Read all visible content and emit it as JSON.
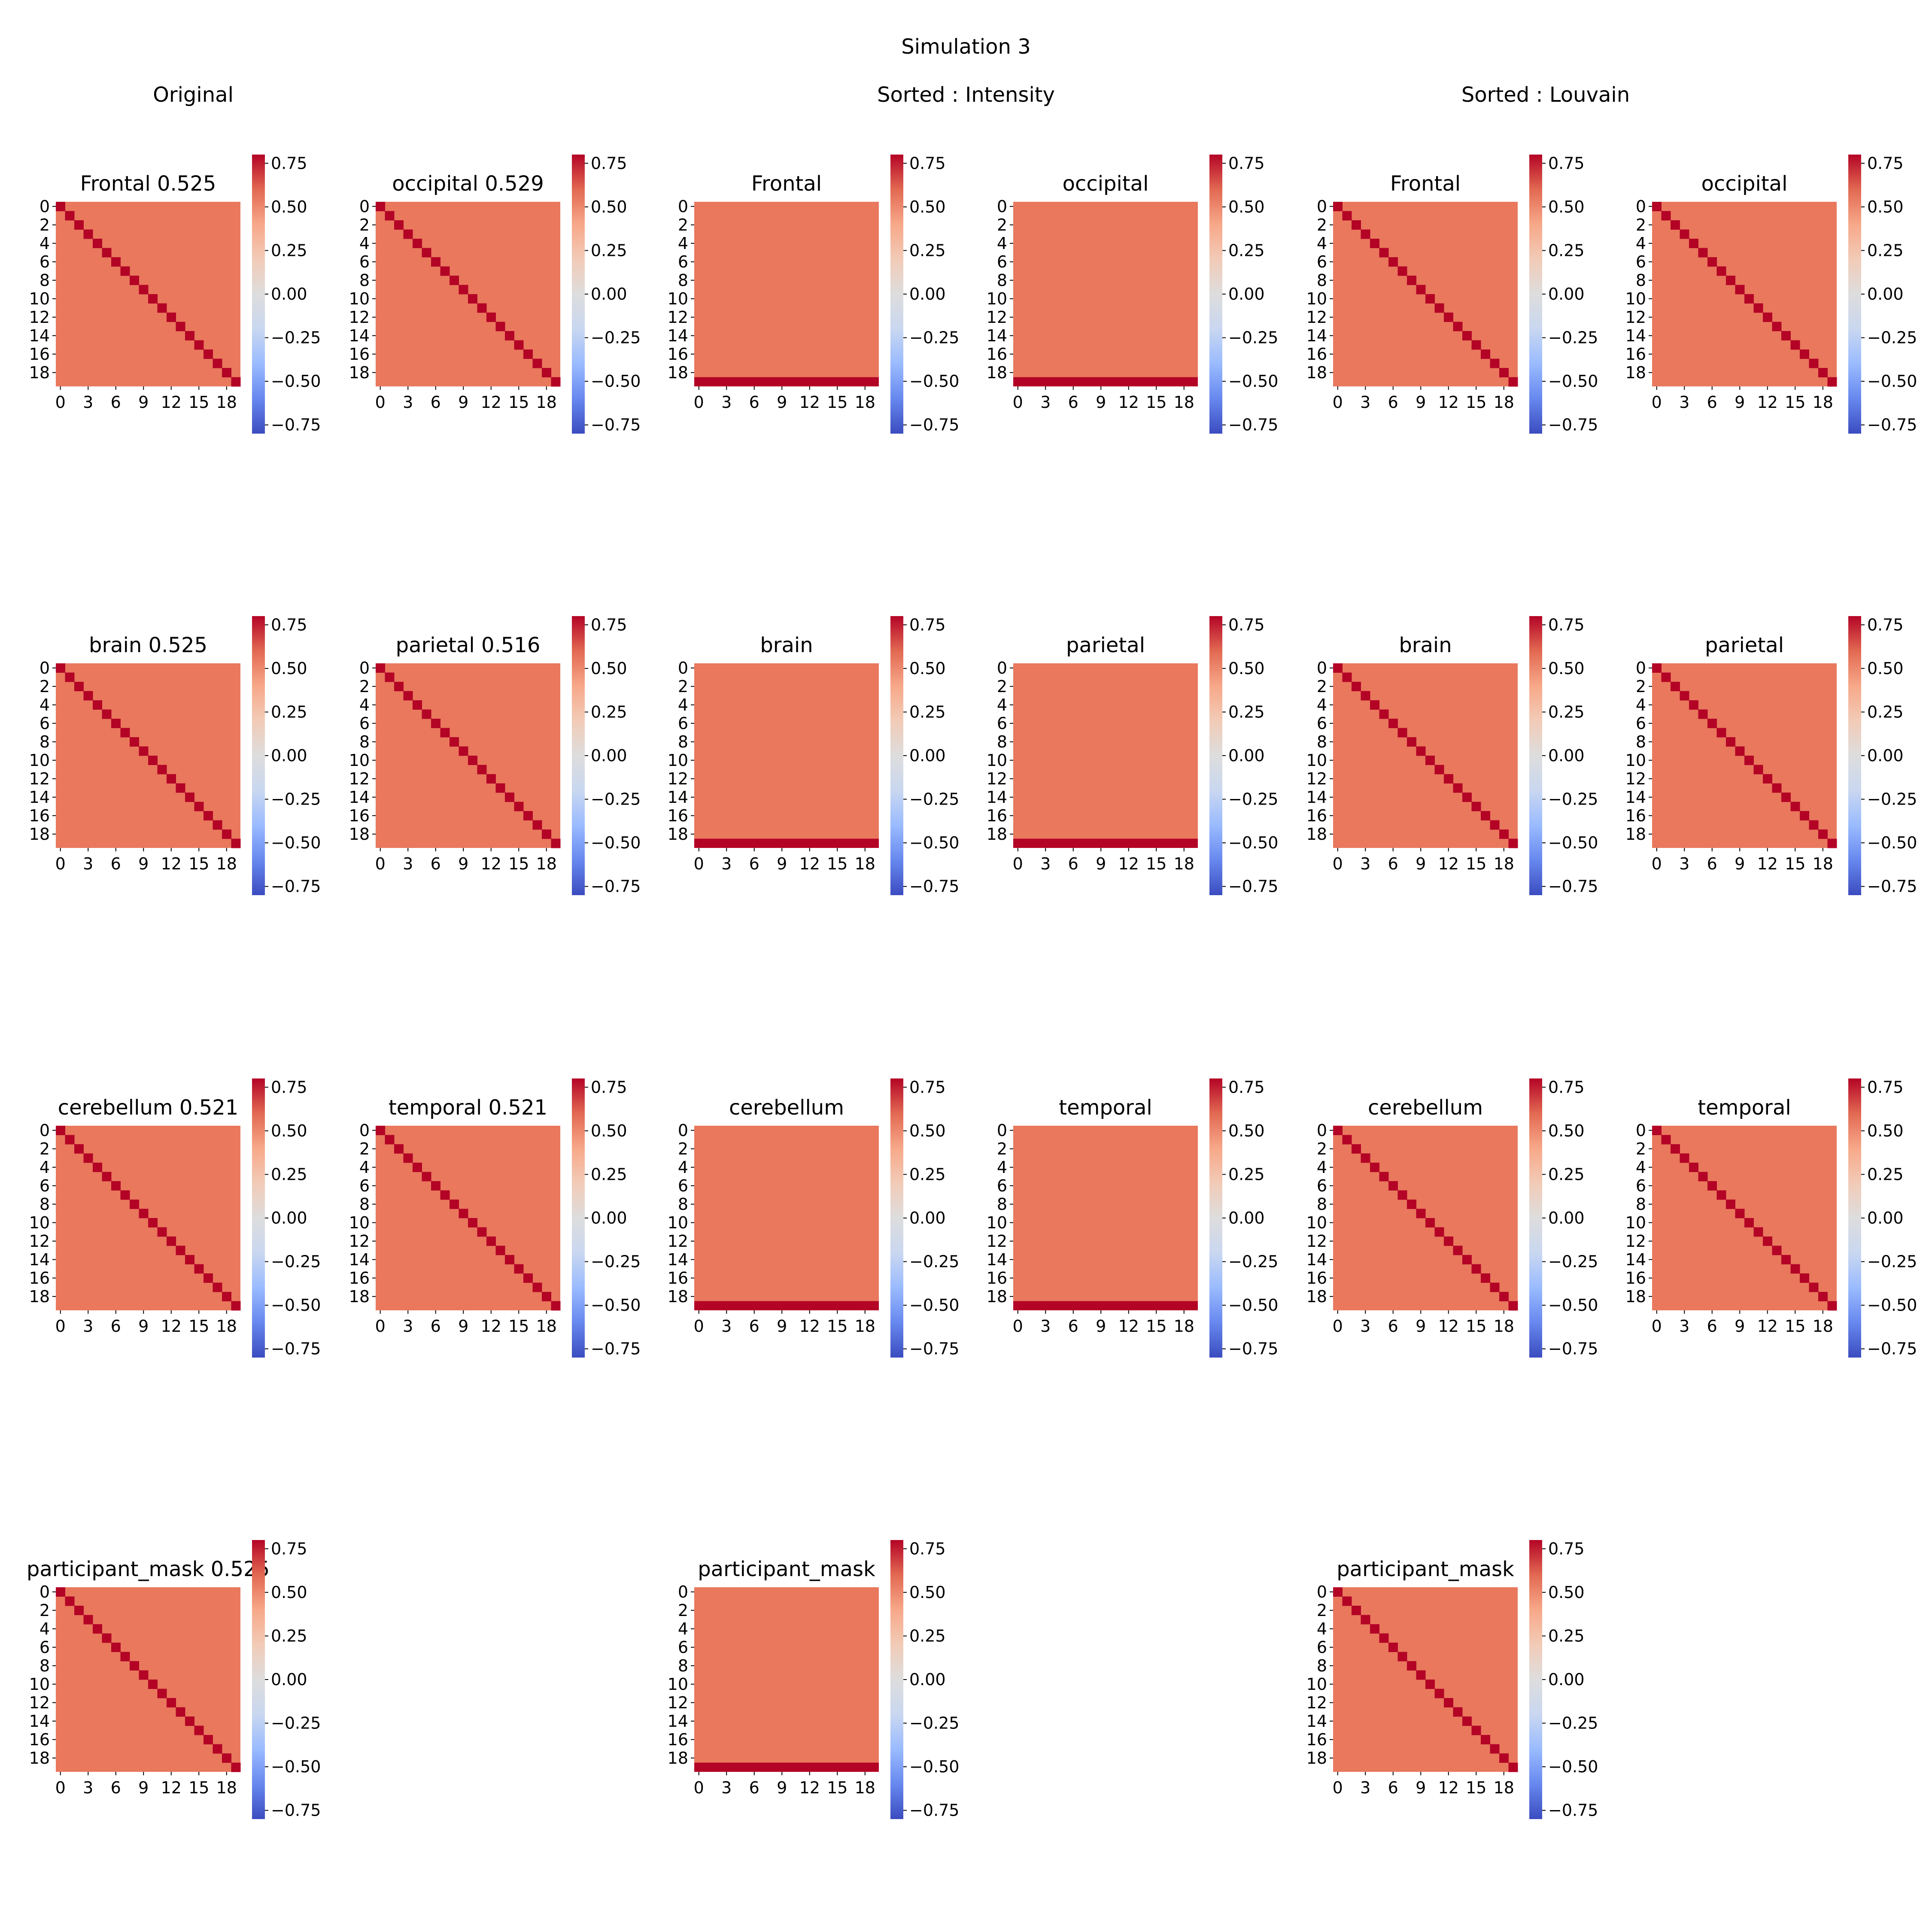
{
  "figure": {
    "suptitle": "Simulation  3",
    "column_groups": [
      "Original",
      "Sorted : Intensity",
      "Sorted : Louvain"
    ]
  },
  "colors": {
    "base_cell": "#e9785d",
    "diagonal_cell": "#b40426",
    "colormap": [
      "#3b4cc0",
      "#6788ee",
      "#9abbff",
      "#c9d7f0",
      "#dddddd",
      "#f2cbb7",
      "#f7a889",
      "#e26952",
      "#b40426"
    ]
  },
  "chart_data": [
    {
      "type": "heatmap",
      "title": "Frontal 0.525",
      "pattern": "diagonal",
      "matrix_size": 20,
      "off_diagonal_value": 0.525,
      "diagonal_value": 0.8,
      "x_ticks": [
        "0",
        "3",
        "6",
        "9",
        "12",
        "15",
        "18"
      ],
      "y_ticks": [
        "0",
        "2",
        "4",
        "6",
        "8",
        "10",
        "12",
        "14",
        "16",
        "18"
      ],
      "colorbar_ticks": [
        "0.75",
        "0.50",
        "0.25",
        "0.00",
        "−0.25",
        "−0.50",
        "−0.75"
      ],
      "vmin": -0.8,
      "vmax": 0.8
    },
    {
      "type": "heatmap",
      "title": "occipital 0.529",
      "pattern": "diagonal",
      "matrix_size": 20,
      "off_diagonal_value": 0.529,
      "diagonal_value": 0.8,
      "x_ticks": [
        "0",
        "3",
        "6",
        "9",
        "12",
        "15",
        "18"
      ],
      "y_ticks": [
        "0",
        "2",
        "4",
        "6",
        "8",
        "10",
        "12",
        "14",
        "16",
        "18"
      ],
      "colorbar_ticks": [
        "0.75",
        "0.50",
        "0.25",
        "0.00",
        "−0.25",
        "−0.50",
        "−0.75"
      ],
      "vmin": -0.8,
      "vmax": 0.8
    },
    {
      "type": "heatmap",
      "title": "Frontal",
      "pattern": "bottom_row",
      "matrix_size": 20,
      "off_diagonal_value": 0.525,
      "diagonal_value": 0.8,
      "x_ticks": [
        "0",
        "3",
        "6",
        "9",
        "12",
        "15",
        "18"
      ],
      "y_ticks": [
        "0",
        "2",
        "4",
        "6",
        "8",
        "10",
        "12",
        "14",
        "16",
        "18"
      ],
      "colorbar_ticks": [
        "0.75",
        "0.50",
        "0.25",
        "0.00",
        "−0.25",
        "−0.50",
        "−0.75"
      ],
      "vmin": -0.8,
      "vmax": 0.8
    },
    {
      "type": "heatmap",
      "title": "occipital",
      "pattern": "bottom_row",
      "matrix_size": 20,
      "off_diagonal_value": 0.529,
      "diagonal_value": 0.8,
      "x_ticks": [
        "0",
        "3",
        "6",
        "9",
        "12",
        "15",
        "18"
      ],
      "y_ticks": [
        "0",
        "2",
        "4",
        "6",
        "8",
        "10",
        "12",
        "14",
        "16",
        "18"
      ],
      "colorbar_ticks": [
        "0.75",
        "0.50",
        "0.25",
        "0.00",
        "−0.25",
        "−0.50",
        "−0.75"
      ],
      "vmin": -0.8,
      "vmax": 0.8
    },
    {
      "type": "heatmap",
      "title": "Frontal",
      "pattern": "diagonal",
      "matrix_size": 20,
      "off_diagonal_value": 0.525,
      "diagonal_value": 0.8,
      "x_ticks": [
        "0",
        "3",
        "6",
        "9",
        "12",
        "15",
        "18"
      ],
      "y_ticks": [
        "0",
        "2",
        "4",
        "6",
        "8",
        "10",
        "12",
        "14",
        "16",
        "18"
      ],
      "colorbar_ticks": [
        "0.75",
        "0.50",
        "0.25",
        "0.00",
        "−0.25",
        "−0.50",
        "−0.75"
      ],
      "vmin": -0.8,
      "vmax": 0.8
    },
    {
      "type": "heatmap",
      "title": "occipital",
      "pattern": "diagonal",
      "matrix_size": 20,
      "off_diagonal_value": 0.529,
      "diagonal_value": 0.8,
      "x_ticks": [
        "0",
        "3",
        "6",
        "9",
        "12",
        "15",
        "18"
      ],
      "y_ticks": [
        "0",
        "2",
        "4",
        "6",
        "8",
        "10",
        "12",
        "14",
        "16",
        "18"
      ],
      "colorbar_ticks": [
        "0.75",
        "0.50",
        "0.25",
        "0.00",
        "−0.25",
        "−0.50",
        "−0.75"
      ],
      "vmin": -0.8,
      "vmax": 0.8
    },
    {
      "type": "heatmap",
      "title": "brain 0.525",
      "pattern": "diagonal",
      "matrix_size": 20,
      "off_diagonal_value": 0.525,
      "diagonal_value": 0.8,
      "x_ticks": [
        "0",
        "3",
        "6",
        "9",
        "12",
        "15",
        "18"
      ],
      "y_ticks": [
        "0",
        "2",
        "4",
        "6",
        "8",
        "10",
        "12",
        "14",
        "16",
        "18"
      ],
      "colorbar_ticks": [
        "0.75",
        "0.50",
        "0.25",
        "0.00",
        "−0.25",
        "−0.50",
        "−0.75"
      ],
      "vmin": -0.8,
      "vmax": 0.8
    },
    {
      "type": "heatmap",
      "title": "parietal 0.516",
      "pattern": "diagonal",
      "matrix_size": 20,
      "off_diagonal_value": 0.516,
      "diagonal_value": 0.8,
      "x_ticks": [
        "0",
        "3",
        "6",
        "9",
        "12",
        "15",
        "18"
      ],
      "y_ticks": [
        "0",
        "2",
        "4",
        "6",
        "8",
        "10",
        "12",
        "14",
        "16",
        "18"
      ],
      "colorbar_ticks": [
        "0.75",
        "0.50",
        "0.25",
        "0.00",
        "−0.25",
        "−0.50",
        "−0.75"
      ],
      "vmin": -0.8,
      "vmax": 0.8
    },
    {
      "type": "heatmap",
      "title": "brain",
      "pattern": "bottom_row",
      "matrix_size": 20,
      "off_diagonal_value": 0.525,
      "diagonal_value": 0.8,
      "x_ticks": [
        "0",
        "3",
        "6",
        "9",
        "12",
        "15",
        "18"
      ],
      "y_ticks": [
        "0",
        "2",
        "4",
        "6",
        "8",
        "10",
        "12",
        "14",
        "16",
        "18"
      ],
      "colorbar_ticks": [
        "0.75",
        "0.50",
        "0.25",
        "0.00",
        "−0.25",
        "−0.50",
        "−0.75"
      ],
      "vmin": -0.8,
      "vmax": 0.8
    },
    {
      "type": "heatmap",
      "title": "parietal",
      "pattern": "bottom_row",
      "matrix_size": 20,
      "off_diagonal_value": 0.516,
      "diagonal_value": 0.8,
      "x_ticks": [
        "0",
        "3",
        "6",
        "9",
        "12",
        "15",
        "18"
      ],
      "y_ticks": [
        "0",
        "2",
        "4",
        "6",
        "8",
        "10",
        "12",
        "14",
        "16",
        "18"
      ],
      "colorbar_ticks": [
        "0.75",
        "0.50",
        "0.25",
        "0.00",
        "−0.25",
        "−0.50",
        "−0.75"
      ],
      "vmin": -0.8,
      "vmax": 0.8
    },
    {
      "type": "heatmap",
      "title": "brain",
      "pattern": "diagonal",
      "matrix_size": 20,
      "off_diagonal_value": 0.525,
      "diagonal_value": 0.8,
      "x_ticks": [
        "0",
        "3",
        "6",
        "9",
        "12",
        "15",
        "18"
      ],
      "y_ticks": [
        "0",
        "2",
        "4",
        "6",
        "8",
        "10",
        "12",
        "14",
        "16",
        "18"
      ],
      "colorbar_ticks": [
        "0.75",
        "0.50",
        "0.25",
        "0.00",
        "−0.25",
        "−0.50",
        "−0.75"
      ],
      "vmin": -0.8,
      "vmax": 0.8
    },
    {
      "type": "heatmap",
      "title": "parietal",
      "pattern": "diagonal",
      "matrix_size": 20,
      "off_diagonal_value": 0.516,
      "diagonal_value": 0.8,
      "x_ticks": [
        "0",
        "3",
        "6",
        "9",
        "12",
        "15",
        "18"
      ],
      "y_ticks": [
        "0",
        "2",
        "4",
        "6",
        "8",
        "10",
        "12",
        "14",
        "16",
        "18"
      ],
      "colorbar_ticks": [
        "0.75",
        "0.50",
        "0.25",
        "0.00",
        "−0.25",
        "−0.50",
        "−0.75"
      ],
      "vmin": -0.8,
      "vmax": 0.8
    },
    {
      "type": "heatmap",
      "title": "cerebellum 0.521",
      "pattern": "diagonal",
      "matrix_size": 20,
      "off_diagonal_value": 0.521,
      "diagonal_value": 0.8,
      "x_ticks": [
        "0",
        "3",
        "6",
        "9",
        "12",
        "15",
        "18"
      ],
      "y_ticks": [
        "0",
        "2",
        "4",
        "6",
        "8",
        "10",
        "12",
        "14",
        "16",
        "18"
      ],
      "colorbar_ticks": [
        "0.75",
        "0.50",
        "0.25",
        "0.00",
        "−0.25",
        "−0.50",
        "−0.75"
      ],
      "vmin": -0.8,
      "vmax": 0.8
    },
    {
      "type": "heatmap",
      "title": "temporal 0.521",
      "pattern": "diagonal",
      "matrix_size": 20,
      "off_diagonal_value": 0.521,
      "diagonal_value": 0.8,
      "x_ticks": [
        "0",
        "3",
        "6",
        "9",
        "12",
        "15",
        "18"
      ],
      "y_ticks": [
        "0",
        "2",
        "4",
        "6",
        "8",
        "10",
        "12",
        "14",
        "16",
        "18"
      ],
      "colorbar_ticks": [
        "0.75",
        "0.50",
        "0.25",
        "0.00",
        "−0.25",
        "−0.50",
        "−0.75"
      ],
      "vmin": -0.8,
      "vmax": 0.8
    },
    {
      "type": "heatmap",
      "title": "cerebellum",
      "pattern": "bottom_row",
      "matrix_size": 20,
      "off_diagonal_value": 0.521,
      "diagonal_value": 0.8,
      "x_ticks": [
        "0",
        "3",
        "6",
        "9",
        "12",
        "15",
        "18"
      ],
      "y_ticks": [
        "0",
        "2",
        "4",
        "6",
        "8",
        "10",
        "12",
        "14",
        "16",
        "18"
      ],
      "colorbar_ticks": [
        "0.75",
        "0.50",
        "0.25",
        "0.00",
        "−0.25",
        "−0.50",
        "−0.75"
      ],
      "vmin": -0.8,
      "vmax": 0.8
    },
    {
      "type": "heatmap",
      "title": "temporal",
      "pattern": "bottom_row",
      "matrix_size": 20,
      "off_diagonal_value": 0.521,
      "diagonal_value": 0.8,
      "x_ticks": [
        "0",
        "3",
        "6",
        "9",
        "12",
        "15",
        "18"
      ],
      "y_ticks": [
        "0",
        "2",
        "4",
        "6",
        "8",
        "10",
        "12",
        "14",
        "16",
        "18"
      ],
      "colorbar_ticks": [
        "0.75",
        "0.50",
        "0.25",
        "0.00",
        "−0.25",
        "−0.50",
        "−0.75"
      ],
      "vmin": -0.8,
      "vmax": 0.8
    },
    {
      "type": "heatmap",
      "title": "cerebellum",
      "pattern": "diagonal",
      "matrix_size": 20,
      "off_diagonal_value": 0.521,
      "diagonal_value": 0.8,
      "x_ticks": [
        "0",
        "3",
        "6",
        "9",
        "12",
        "15",
        "18"
      ],
      "y_ticks": [
        "0",
        "2",
        "4",
        "6",
        "8",
        "10",
        "12",
        "14",
        "16",
        "18"
      ],
      "colorbar_ticks": [
        "0.75",
        "0.50",
        "0.25",
        "0.00",
        "−0.25",
        "−0.50",
        "−0.75"
      ],
      "vmin": -0.8,
      "vmax": 0.8
    },
    {
      "type": "heatmap",
      "title": "temporal",
      "pattern": "diagonal",
      "matrix_size": 20,
      "off_diagonal_value": 0.521,
      "diagonal_value": 0.8,
      "x_ticks": [
        "0",
        "3",
        "6",
        "9",
        "12",
        "15",
        "18"
      ],
      "y_ticks": [
        "0",
        "2",
        "4",
        "6",
        "8",
        "10",
        "12",
        "14",
        "16",
        "18"
      ],
      "colorbar_ticks": [
        "0.75",
        "0.50",
        "0.25",
        "0.00",
        "−0.25",
        "−0.50",
        "−0.75"
      ],
      "vmin": -0.8,
      "vmax": 0.8
    },
    {
      "type": "heatmap",
      "title": "participant_mask 0.525",
      "pattern": "diagonal",
      "matrix_size": 20,
      "off_diagonal_value": 0.525,
      "diagonal_value": 0.8,
      "x_ticks": [
        "0",
        "3",
        "6",
        "9",
        "12",
        "15",
        "18"
      ],
      "y_ticks": [
        "0",
        "2",
        "4",
        "6",
        "8",
        "10",
        "12",
        "14",
        "16",
        "18"
      ],
      "colorbar_ticks": [
        "0.75",
        "0.50",
        "0.25",
        "0.00",
        "−0.25",
        "−0.50",
        "−0.75"
      ],
      "vmin": -0.8,
      "vmax": 0.8
    },
    {
      "type": "heatmap",
      "title": "participant_mask",
      "pattern": "bottom_row",
      "matrix_size": 20,
      "off_diagonal_value": 0.525,
      "diagonal_value": 0.8,
      "x_ticks": [
        "0",
        "3",
        "6",
        "9",
        "12",
        "15",
        "18"
      ],
      "y_ticks": [
        "0",
        "2",
        "4",
        "6",
        "8",
        "10",
        "12",
        "14",
        "16",
        "18"
      ],
      "colorbar_ticks": [
        "0.75",
        "0.50",
        "0.25",
        "0.00",
        "−0.25",
        "−0.50",
        "−0.75"
      ],
      "vmin": -0.8,
      "vmax": 0.8
    },
    {
      "type": "heatmap",
      "title": "participant_mask",
      "pattern": "diagonal",
      "matrix_size": 20,
      "off_diagonal_value": 0.525,
      "diagonal_value": 0.8,
      "x_ticks": [
        "0",
        "3",
        "6",
        "9",
        "12",
        "15",
        "18"
      ],
      "y_ticks": [
        "0",
        "2",
        "4",
        "6",
        "8",
        "10",
        "12",
        "14",
        "16",
        "18"
      ],
      "colorbar_ticks": [
        "0.75",
        "0.50",
        "0.25",
        "0.00",
        "−0.25",
        "−0.50",
        "−0.75"
      ],
      "vmin": -0.8,
      "vmax": 0.8
    }
  ]
}
